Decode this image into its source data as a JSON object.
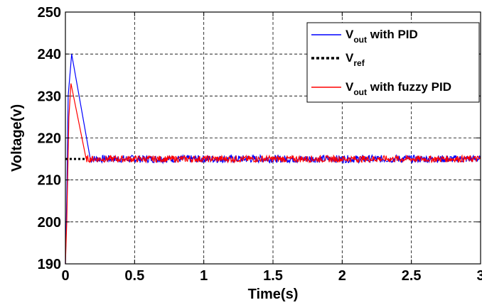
{
  "chart_data": {
    "type": "line",
    "title": "",
    "xlabel": "Time(s)",
    "ylabel": "Voltage(v)",
    "xlim": [
      0,
      3
    ],
    "ylim": [
      190,
      250
    ],
    "x_ticks": [
      0,
      0.5,
      1,
      1.5,
      2,
      2.5,
      3
    ],
    "x_tick_labels": [
      "0",
      "0.5",
      "1",
      "1.5",
      "2",
      "2.5",
      "3"
    ],
    "y_ticks": [
      190,
      200,
      210,
      220,
      230,
      240,
      250
    ],
    "y_tick_labels": [
      "190",
      "200",
      "210",
      "220",
      "230",
      "240",
      "250"
    ],
    "grid": true,
    "legend_position": "top-right",
    "series": [
      {
        "key": "pid",
        "legend_main": "V",
        "legend_sub": "out",
        "legend_rest": " with PID",
        "color": "#0000ff",
        "style": "solid",
        "points": [
          [
            0,
            190
          ],
          [
            0.01,
            205
          ],
          [
            0.02,
            230
          ],
          [
            0.045,
            240
          ],
          [
            0.18,
            215
          ],
          [
            3,
            215
          ]
        ],
        "ripple_from": 0.18,
        "ripple_amplitude": 0.9
      },
      {
        "key": "ref",
        "legend_main": "V",
        "legend_sub": "ref",
        "legend_rest": "",
        "color": "#000000",
        "style": "dotted",
        "points": [
          [
            0,
            215
          ],
          [
            0.15,
            215
          ]
        ]
      },
      {
        "key": "fuzzy",
        "legend_main": "V",
        "legend_sub": "out",
        "legend_rest": " with fuzzy PID",
        "color": "#ff0000",
        "style": "solid",
        "points": [
          [
            0,
            190
          ],
          [
            0.01,
            200
          ],
          [
            0.025,
            225
          ],
          [
            0.04,
            233
          ],
          [
            0.15,
            215
          ],
          [
            3,
            215
          ]
        ],
        "ripple_from": 0.15,
        "ripple_amplitude": 0.8
      }
    ]
  }
}
